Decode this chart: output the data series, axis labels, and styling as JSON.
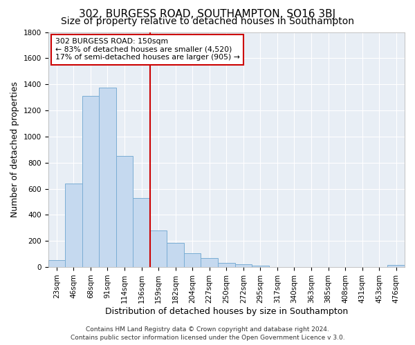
{
  "title": "302, BURGESS ROAD, SOUTHAMPTON, SO16 3BJ",
  "subtitle": "Size of property relative to detached houses in Southampton",
  "xlabel": "Distribution of detached houses by size in Southampton",
  "ylabel": "Number of detached properties",
  "footer_line1": "Contains HM Land Registry data © Crown copyright and database right 2024.",
  "footer_line2": "Contains public sector information licensed under the Open Government Licence v 3.0.",
  "categories": [
    "23sqm",
    "46sqm",
    "68sqm",
    "91sqm",
    "114sqm",
    "136sqm",
    "159sqm",
    "182sqm",
    "204sqm",
    "227sqm",
    "250sqm",
    "272sqm",
    "295sqm",
    "317sqm",
    "340sqm",
    "363sqm",
    "385sqm",
    "408sqm",
    "431sqm",
    "453sqm",
    "476sqm"
  ],
  "values": [
    55,
    640,
    1310,
    1375,
    850,
    530,
    280,
    185,
    105,
    68,
    32,
    22,
    10,
    0,
    0,
    0,
    0,
    0,
    0,
    0,
    15
  ],
  "bar_color": "#c5d9ef",
  "bar_edge_color": "#7aadd4",
  "vline_x_index": 5.5,
  "vline_color": "#cc0000",
  "annotation_title": "302 BURGESS ROAD: 150sqm",
  "annotation_line1": "← 83% of detached houses are smaller (4,520)",
  "annotation_line2": "17% of semi-detached houses are larger (905) →",
  "annotation_box_edge_color": "#cc0000",
  "ylim": [
    0,
    1800
  ],
  "yticks": [
    0,
    200,
    400,
    600,
    800,
    1000,
    1200,
    1400,
    1600,
    1800
  ],
  "background_color": "#ffffff",
  "plot_background_color": "#e8eef5",
  "grid_color": "#ffffff",
  "title_fontsize": 11,
  "subtitle_fontsize": 10,
  "axis_label_fontsize": 9,
  "tick_fontsize": 7.5,
  "footer_fontsize": 6.5
}
